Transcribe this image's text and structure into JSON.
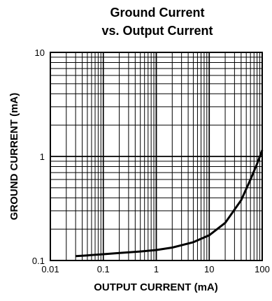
{
  "chart_data": {
    "type": "line",
    "title": "Ground Current",
    "subtitle": "vs. Output Current",
    "xlabel": "OUTPUT CURRENT (mA)",
    "ylabel": "GROUND CURRENT (mA)",
    "xscale": "log",
    "yscale": "log",
    "xlim": [
      0.01,
      100
    ],
    "ylim": [
      0.1,
      10
    ],
    "x_ticks": [
      "0.01",
      "0.1",
      "1",
      "10",
      "100"
    ],
    "y_ticks": [
      "0.1",
      "1",
      "10"
    ],
    "grid": true,
    "series": [
      {
        "x": [
          0.03,
          0.05,
          0.1,
          0.2,
          0.5,
          1,
          2,
          5,
          10,
          20,
          40,
          60,
          80,
          100
        ],
        "y": [
          0.11,
          0.112,
          0.115,
          0.118,
          0.122,
          0.126,
          0.133,
          0.15,
          0.175,
          0.23,
          0.38,
          0.6,
          0.85,
          1.15
        ]
      }
    ]
  }
}
